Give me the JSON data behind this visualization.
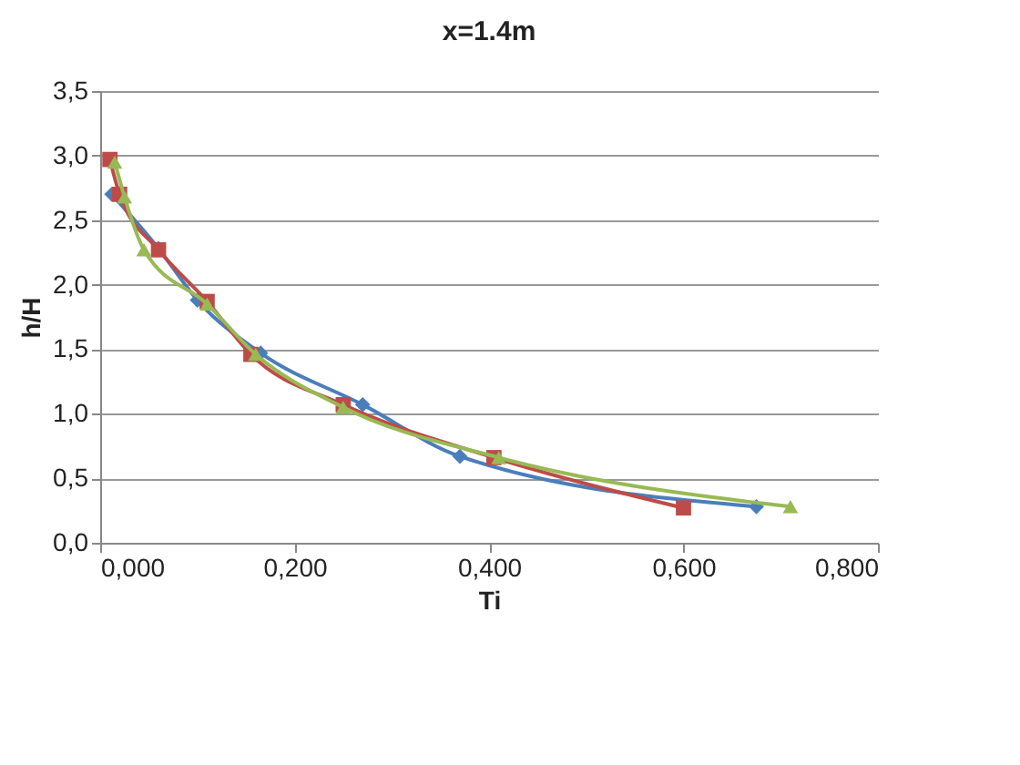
{
  "chart_data": {
    "type": "line",
    "title": "x=1.4m",
    "xlabel": "Ti",
    "ylabel": "h/H",
    "xlim": [
      0,
      0.8
    ],
    "xticks": [
      {
        "value": 0,
        "label": "0,000"
      },
      {
        "value": 0.2,
        "label": "0,200"
      },
      {
        "value": 0.4,
        "label": "0,400"
      },
      {
        "value": 0.6,
        "label": "0,600"
      },
      {
        "value": 0.8,
        "label": "0,800"
      }
    ],
    "ylim": [
      0,
      3.5
    ],
    "yticks": [
      {
        "value": 0,
        "label": "0,0"
      },
      {
        "value": 0.5,
        "label": "0,5"
      },
      {
        "value": 1,
        "label": "1,0"
      },
      {
        "value": 1.5,
        "label": "1,5"
      },
      {
        "value": 2,
        "label": "2,0"
      },
      {
        "value": 2.5,
        "label": "2,5"
      },
      {
        "value": 3,
        "label": "3,0"
      },
      {
        "value": 3.5,
        "label": "3,5"
      }
    ],
    "grid": "y",
    "series": [
      {
        "color": "#4a7ebb",
        "marker": "diamond",
        "x": [
          0.012,
          0.06,
          0.1,
          0.165,
          0.27,
          0.37,
          0.675
        ],
        "values": [
          2.7,
          2.28,
          1.88,
          1.47,
          1.07,
          0.67,
          0.28
        ]
      },
      {
        "color": "#be4b48",
        "marker": "square",
        "x": [
          0.01,
          0.02,
          0.06,
          0.11,
          0.155,
          0.25,
          0.405,
          0.6
        ],
        "values": [
          2.97,
          2.7,
          2.27,
          1.87,
          1.46,
          1.07,
          0.66,
          0.27
        ]
      },
      {
        "color": "#98b954",
        "marker": "triangle",
        "x": [
          0.015,
          0.025,
          0.045,
          0.11,
          0.16,
          0.25,
          0.41,
          0.71
        ],
        "values": [
          2.95,
          2.68,
          2.27,
          1.85,
          1.46,
          1.05,
          0.66,
          0.28
        ]
      }
    ]
  }
}
